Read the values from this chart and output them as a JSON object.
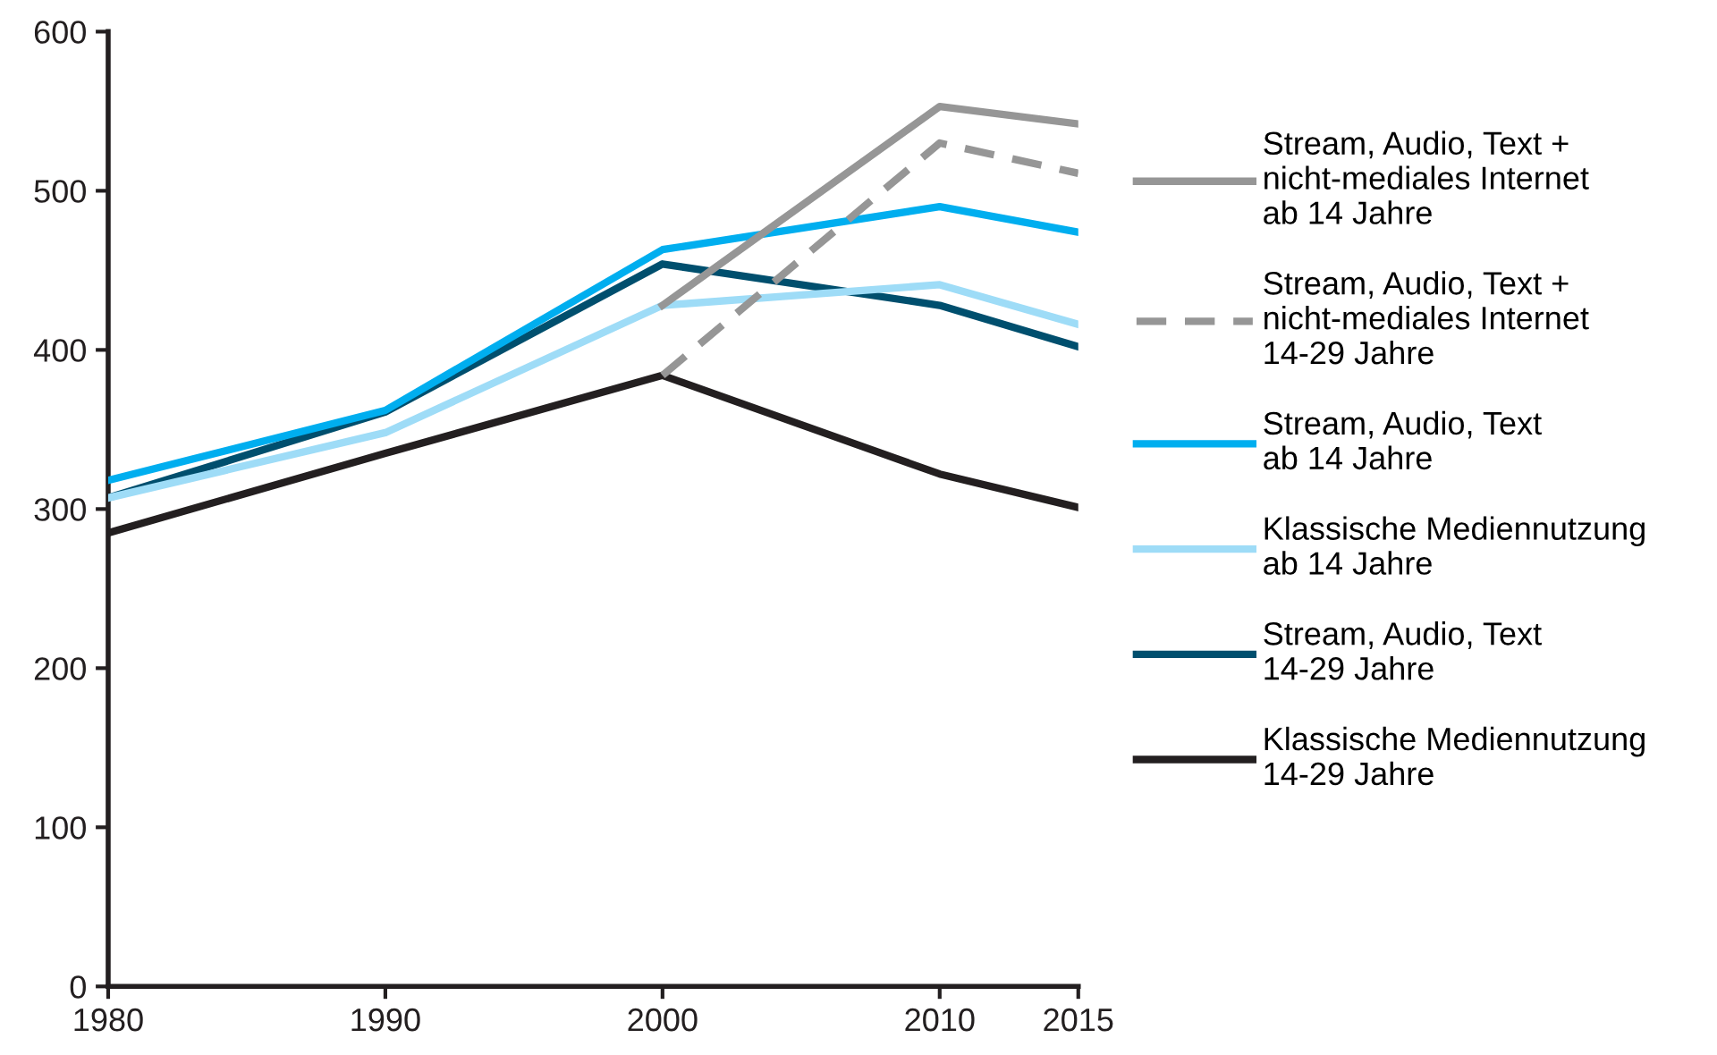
{
  "chart_data": {
    "type": "line",
    "x": [
      1980,
      1990,
      2000,
      2010,
      2015
    ],
    "xlim": [
      1980,
      2015
    ],
    "xticks": [
      1980,
      1990,
      2000,
      2010,
      2015
    ],
    "ylim": [
      0,
      600
    ],
    "yticks": [
      0,
      100,
      200,
      300,
      400,
      500,
      600
    ],
    "grid": false,
    "legend": "right",
    "series": [
      {
        "name": "Stream, Audio, Text +\nnicht-mediales Internet\nab 14 Jahre",
        "color": "#969696",
        "values": [
          null,
          null,
          428,
          553,
          542
        ]
      },
      {
        "name": "Stream, Audio, Text +\nnicht-mediales Internet\n14-29 Jahre",
        "color": "#969696",
        "line_style": "dashed",
        "values": [
          null,
          null,
          384,
          530,
          511
        ]
      },
      {
        "name": "Stream, Audio, Text\nab 14 Jahre",
        "color": "#00aeef",
        "values": [
          318,
          362,
          463,
          490,
          474
        ]
      },
      {
        "name": "Klassische Mediennutzung\nab 14 Jahre",
        "color": "#9edcf7",
        "values": [
          307,
          348,
          428,
          441,
          416
        ]
      },
      {
        "name": "Stream, Audio, Text\n14-29 Jahre",
        "color": "#004f6e",
        "values": [
          307,
          361,
          454,
          428,
          402
        ]
      },
      {
        "name": "Klassische Mediennutzung\n14-29 Jahre",
        "color": "#231f20",
        "values": [
          285,
          335,
          384,
          322,
          301
        ]
      }
    ]
  }
}
